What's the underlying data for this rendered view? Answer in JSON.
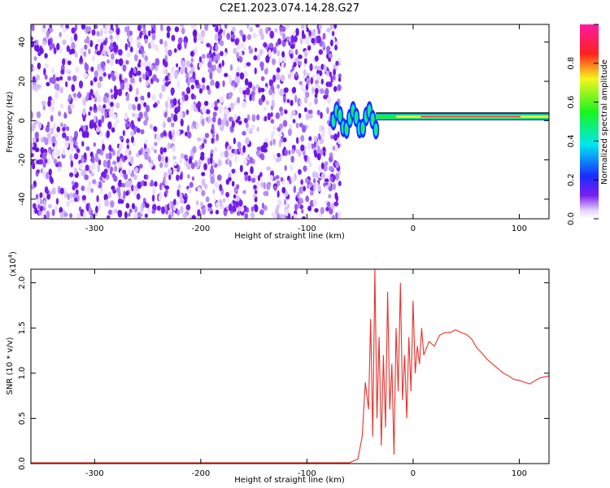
{
  "title": "C2E1.2023.074.14.28.G27",
  "colors": {
    "spectrogram_noise": "#7a1ef0",
    "snr_line": "#e8312b",
    "axis": "#000000"
  },
  "chart_data": [
    {
      "type": "heatmap",
      "xlabel": "Height of straight line (km)",
      "ylabel": "Frequency (Hz)",
      "xlim": [
        -360,
        128
      ],
      "ylim": [
        -50,
        49
      ],
      "xticks": [
        -300,
        -200,
        -100,
        0,
        100
      ],
      "yticks": [
        -40,
        -20,
        0,
        20,
        40
      ],
      "colorbar": {
        "label": "Normalized spectral amplitude",
        "range": [
          0,
          1
        ],
        "ticks": [
          0.0,
          0.2,
          0.4,
          0.6,
          0.8
        ],
        "colormap": "rainbow (white at 0, violet, blue, cyan, green, yellow, red, magenta at 1)"
      },
      "regions": [
        {
          "x_range": [
            -360,
            -75
          ],
          "frequency_range": [
            -50,
            49
          ],
          "description_value": "broadband noise, normalized amplitude about 0.1-0.25"
        },
        {
          "x_range": [
            -75,
            -35
          ],
          "frequency_center": 0,
          "frequency_half_width": 8,
          "description_value": "oscillating signal, amplitude about 0.3-0.6"
        },
        {
          "x_range": [
            -35,
            128
          ],
          "frequency_center": 2,
          "frequency_half_width": 1.5,
          "description_value": "narrow carrier, amplitude about 0.8-0.9"
        }
      ]
    },
    {
      "type": "line",
      "xlabel": "Height of straight line (km)",
      "ylabel": "SNR (10 * v/v)",
      "yscale_label": "(x10",
      "yscale_exponent": "4",
      "xlim": [
        -360,
        128
      ],
      "ylim": [
        0,
        2.15
      ],
      "xticks": [
        -300,
        -200,
        -100,
        0,
        100
      ],
      "yticks": [
        0.0,
        0.5,
        1.0,
        1.5,
        2.0
      ],
      "series": [
        {
          "x": [
            -360,
            -300,
            -200,
            -100,
            -60,
            -52,
            -48,
            -45,
            -42,
            -40,
            -38,
            -36,
            -34,
            -32,
            -30,
            -28,
            -26,
            -24,
            -22,
            -20,
            -18,
            -16,
            -14,
            -12,
            -10,
            -8,
            -6,
            -4,
            -2,
            0,
            2,
            4,
            6,
            8,
            10,
            15,
            20,
            25,
            30,
            35,
            40,
            45,
            50,
            55,
            60,
            65,
            70,
            75,
            80,
            85,
            90,
            95,
            100,
            105,
            110,
            115,
            120,
            128
          ],
          "y": [
            0.01,
            0.01,
            0.01,
            0.01,
            0.01,
            0.05,
            0.3,
            0.9,
            0.6,
            1.6,
            0.3,
            2.15,
            0.5,
            1.4,
            0.2,
            1.2,
            0.4,
            1.9,
            0.6,
            1.1,
            0.1,
            1.5,
            0.8,
            2.0,
            0.7,
            1.2,
            0.5,
            1.4,
            0.8,
            1.8,
            1.0,
            1.3,
            1.1,
            1.5,
            1.2,
            1.35,
            1.3,
            1.42,
            1.45,
            1.45,
            1.48,
            1.45,
            1.43,
            1.38,
            1.28,
            1.22,
            1.15,
            1.1,
            1.05,
            1.0,
            0.97,
            0.93,
            0.92,
            0.9,
            0.88,
            0.92,
            0.95,
            0.97
          ]
        }
      ]
    }
  ]
}
